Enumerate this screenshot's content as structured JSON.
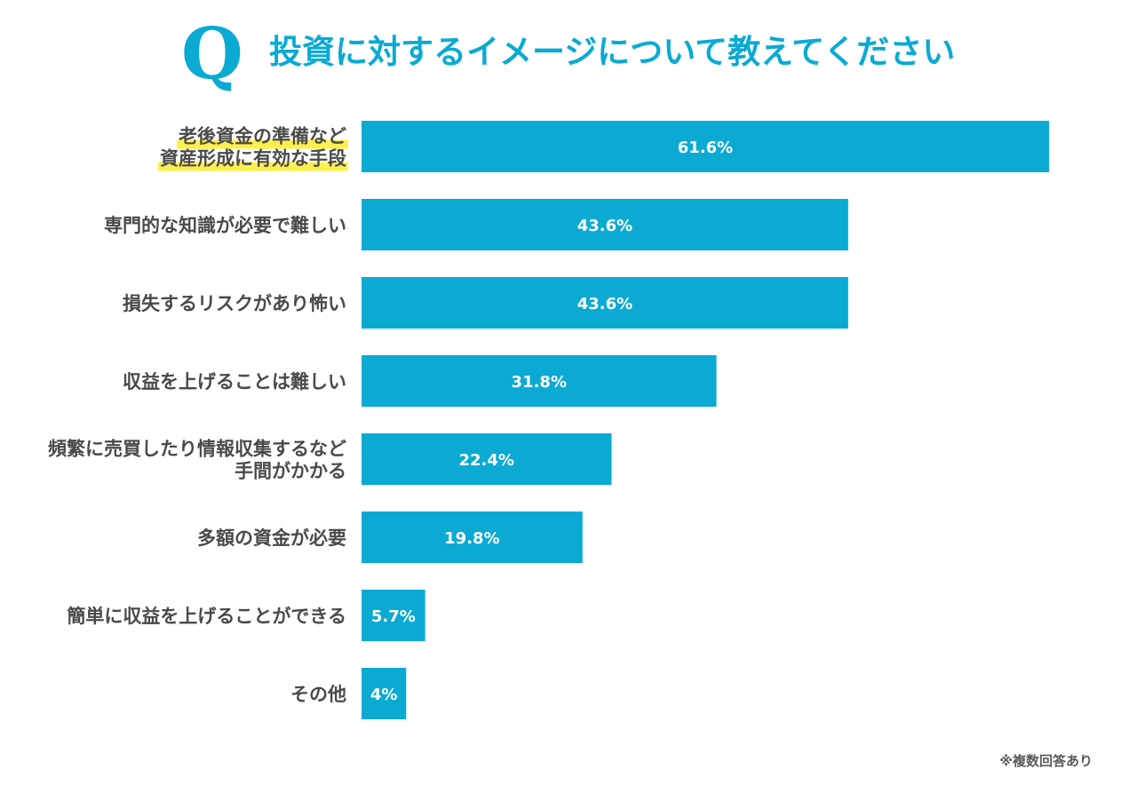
{
  "header": {
    "q_mark": "Q",
    "title": "投資に対するイメージについて教えてください"
  },
  "note": "※複数回答あり",
  "colors": {
    "bar": "#0aaad3",
    "highlight": "#fff04d",
    "text": "#4a4a4a"
  },
  "chart_data": {
    "type": "bar",
    "orientation": "horizontal",
    "title": "投資に対するイメージについて教えてください",
    "categories": [
      [
        "老後資金の準備など",
        "資産形成に有効な手段"
      ],
      [
        "専門的な知識が必要で難しい"
      ],
      [
        "損失するリスクがあり怖い"
      ],
      [
        "収益を上げることは難しい"
      ],
      [
        "頻繁に売買したり情報収集するなど",
        "手間がかかる"
      ],
      [
        "多額の資金が必要"
      ],
      [
        "簡単に収益を上げることができる"
      ],
      [
        "その他"
      ]
    ],
    "values": [
      61.6,
      43.6,
      43.6,
      31.8,
      22.4,
      19.8,
      5.7,
      4
    ],
    "value_labels": [
      "61.6%",
      "43.6%",
      "43.6%",
      "31.8%",
      "22.4%",
      "19.8%",
      "5.7%",
      "4%"
    ],
    "highlighted_index": 0,
    "xlim": [
      0,
      61.6
    ],
    "grid": false,
    "legend": "none"
  }
}
